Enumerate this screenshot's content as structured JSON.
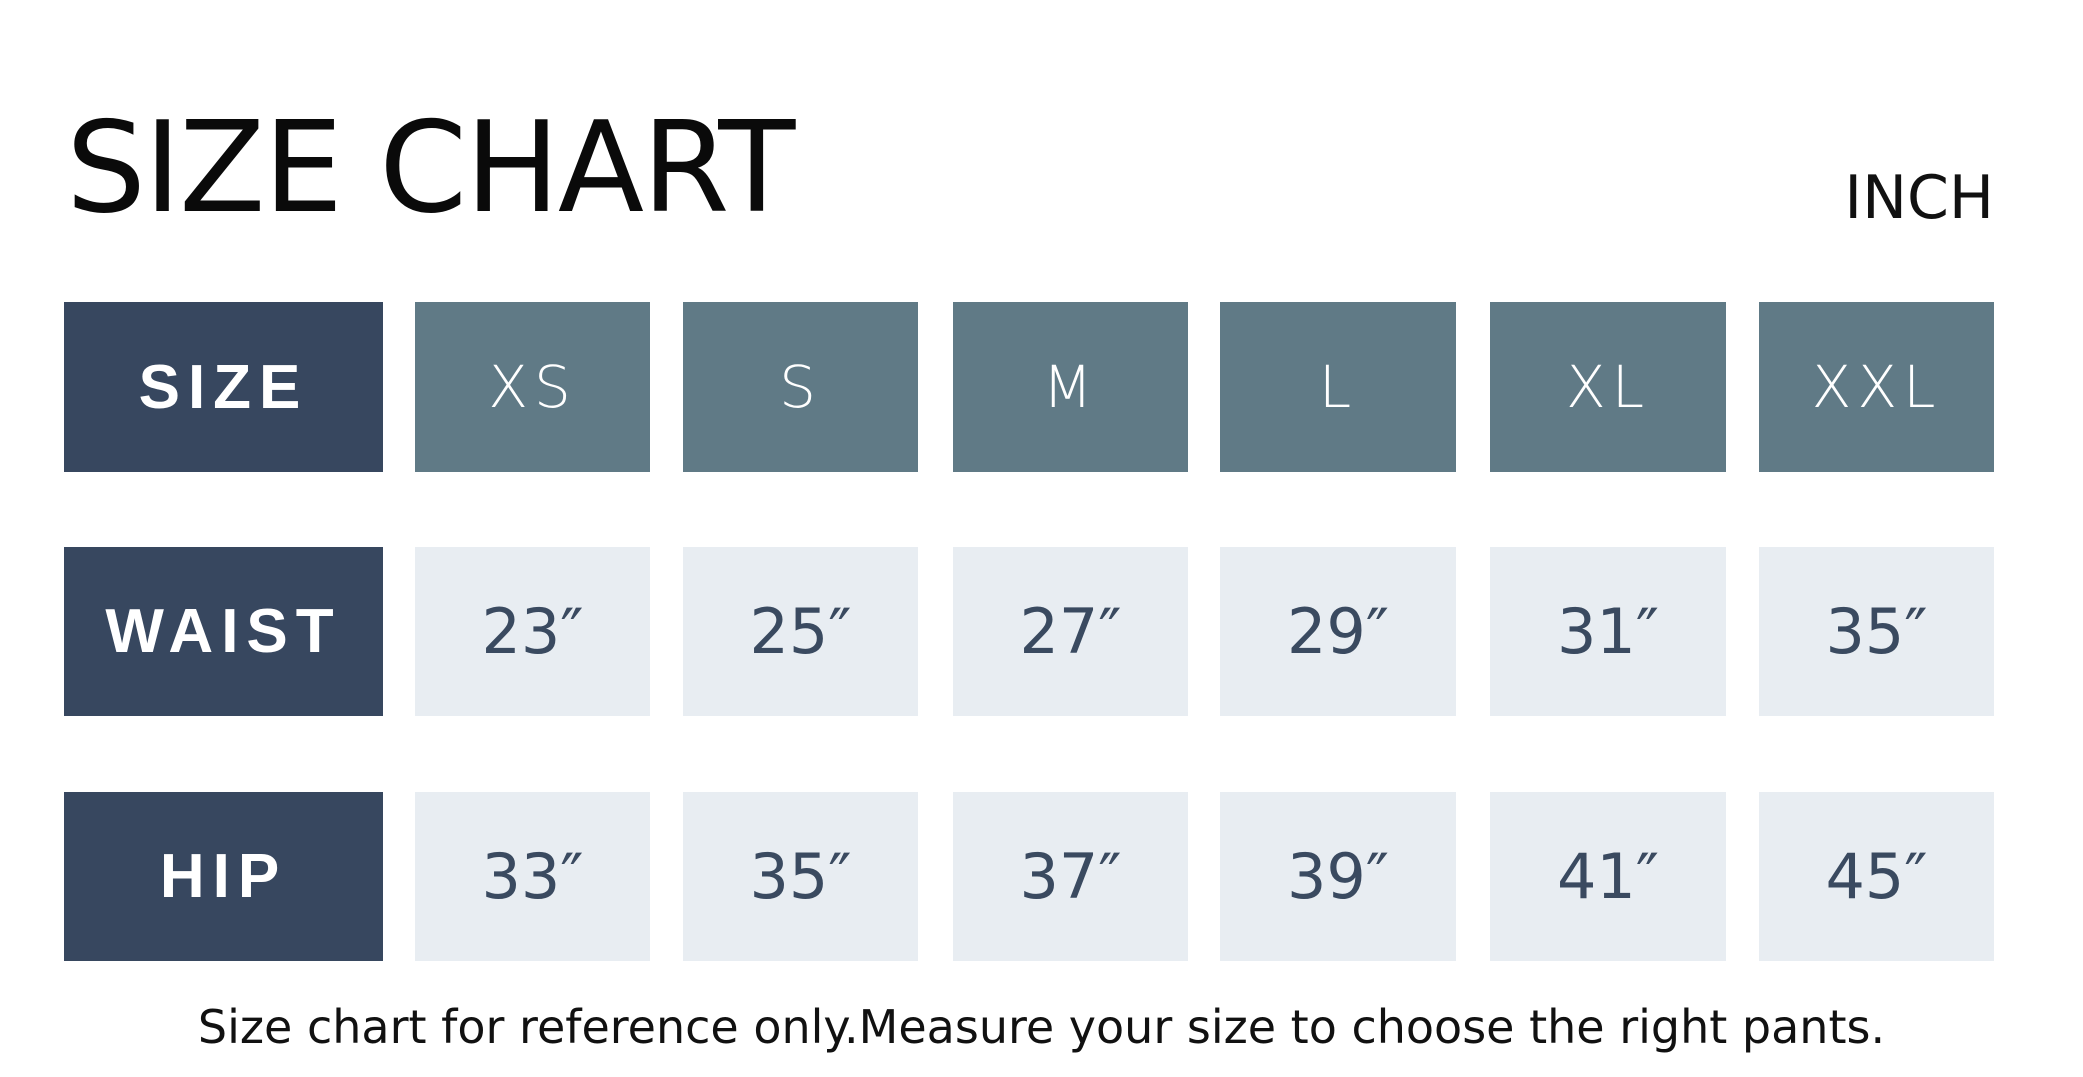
{
  "title": "SIZE CHART",
  "unit": "INCH",
  "colors": {
    "label_bg": "#37475f",
    "header_bg": "#607a86",
    "cell_bg": "#e8edf2",
    "value_text": "#3a4a60"
  },
  "header": {
    "label": "SIZE",
    "sizes": [
      "XS",
      "S",
      "M",
      "L",
      "XL",
      "XXL"
    ]
  },
  "rows": [
    {
      "label": "WAIST",
      "values": [
        "23″",
        "25″",
        "27″",
        "29″",
        "31″",
        "35″"
      ]
    },
    {
      "label": "HIP",
      "values": [
        "33″",
        "35″",
        "37″",
        "39″",
        "41″",
        "45″"
      ]
    }
  ],
  "footer": "Size chart for reference only.Measure your size to choose the right pants."
}
